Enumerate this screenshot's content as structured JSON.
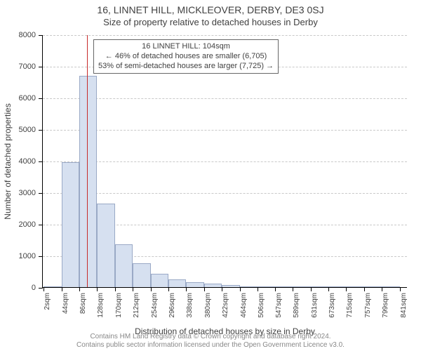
{
  "title_main": "16, LINNET HILL, MICKLEOVER, DERBY, DE3 0SJ",
  "title_sub": "Size of property relative to detached houses in Derby",
  "chart": {
    "type": "bar",
    "xlabel": "Distribution of detached houses by size in Derby",
    "ylabel": "Number of detached properties",
    "ylim": [
      0,
      8000
    ],
    "ytick_step": 1000,
    "xlim": [
      0,
      860
    ],
    "grid_color": "#c9c9c9",
    "bar_fill": "#d6e0f0",
    "bar_border": "#9aa9c6",
    "bg": "#ffffff",
    "bar_bin_width": 42,
    "bars": [
      {
        "x0": 2,
        "value": 0
      },
      {
        "x0": 44,
        "value": 3950
      },
      {
        "x0": 86,
        "value": 6700
      },
      {
        "x0": 128,
        "value": 2650
      },
      {
        "x0": 170,
        "value": 1350
      },
      {
        "x0": 212,
        "value": 750
      },
      {
        "x0": 254,
        "value": 420
      },
      {
        "x0": 296,
        "value": 250
      },
      {
        "x0": 338,
        "value": 160
      },
      {
        "x0": 380,
        "value": 110
      },
      {
        "x0": 422,
        "value": 70
      },
      {
        "x0": 464,
        "value": 15
      },
      {
        "x0": 506,
        "value": 0
      },
      {
        "x0": 547,
        "value": 0
      },
      {
        "x0": 589,
        "value": 0
      },
      {
        "x0": 631,
        "value": 0
      },
      {
        "x0": 673,
        "value": 0
      },
      {
        "x0": 715,
        "value": 15
      },
      {
        "x0": 757,
        "value": 0
      },
      {
        "x0": 799,
        "value": 0
      }
    ],
    "xticks": [
      "2sqm",
      "44sqm",
      "86sqm",
      "128sqm",
      "170sqm",
      "212sqm",
      "254sqm",
      "296sqm",
      "338sqm",
      "380sqm",
      "422sqm",
      "464sqm",
      "506sqm",
      "547sqm",
      "589sqm",
      "631sqm",
      "673sqm",
      "715sqm",
      "757sqm",
      "799sqm",
      "841sqm"
    ],
    "xtick_positions": [
      2,
      44,
      86,
      128,
      170,
      212,
      254,
      296,
      338,
      380,
      422,
      464,
      506,
      547,
      589,
      631,
      673,
      715,
      757,
      799,
      841
    ],
    "marker": {
      "x": 104,
      "color": "#c72b2b"
    },
    "info_box": {
      "line1": "16 LINNET HILL: 104sqm",
      "line2": "← 46% of detached houses are smaller (6,705)",
      "line3": "53% of semi-detached houses are larger (7,725) →"
    }
  },
  "footer": {
    "line1": "Contains HM Land Registry data © Crown copyright and database right 2024.",
    "line2": "Contains public sector information licensed under the Open Government Licence v3.0."
  }
}
